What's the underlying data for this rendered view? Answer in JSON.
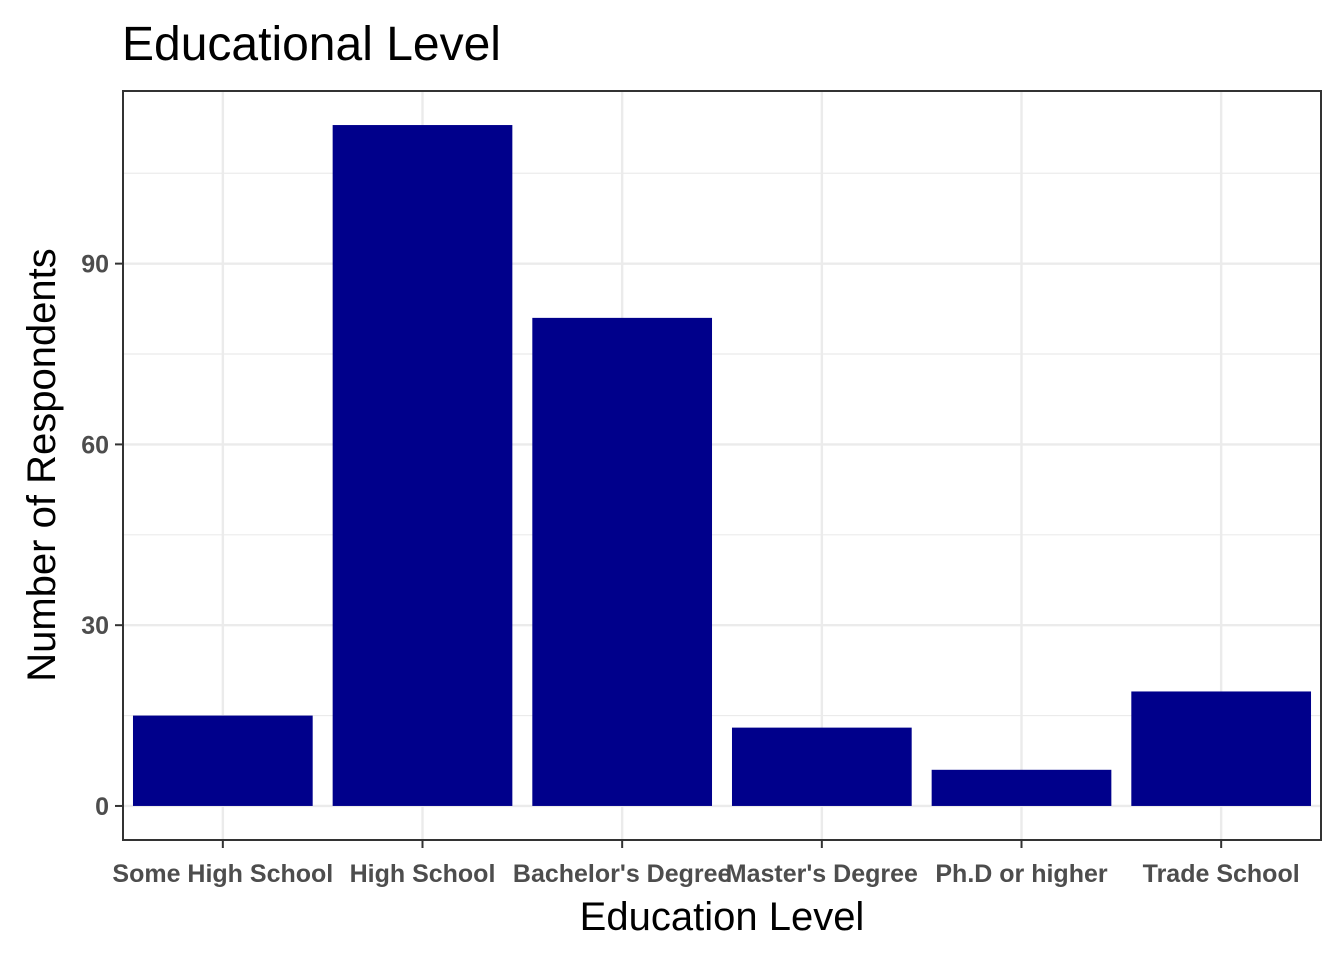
{
  "chart_data": {
    "type": "bar",
    "title": "Educational Level",
    "xlabel": "Education Level",
    "ylabel": "Number of Respondents",
    "categories": [
      "Some High School",
      "High School",
      "Bachelor's Degree",
      "Master's Degree",
      "Ph.D or higher",
      "Trade School"
    ],
    "values": [
      15,
      113,
      81,
      13,
      6,
      19
    ],
    "ylim": [
      -5.65,
      118.65
    ],
    "yticks": [
      0,
      30,
      60,
      90
    ],
    "ytick_labels": [
      "0",
      "30",
      "60",
      "90"
    ],
    "grid": true,
    "legend": "none",
    "bar_color": "#00008B",
    "grid_color": "#EBEBEB",
    "panel_border_color": "#333333"
  }
}
